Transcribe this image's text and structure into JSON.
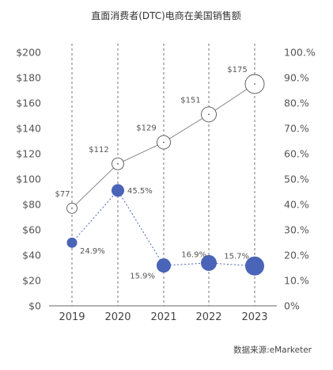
{
  "chart_data": {
    "type": "line",
    "title": "直面消费者(DTC)电商在美国销售额",
    "x": [
      "2019",
      "2020",
      "2021",
      "2022",
      "2023"
    ],
    "series": [
      {
        "axis": "left",
        "values": [
          77,
          112,
          129,
          151,
          175
        ],
        "labels": [
          "$77",
          "$112",
          "$129",
          "$151",
          "$175"
        ],
        "line_style": "solid",
        "marker": "hollow-circle",
        "color": "#888888"
      },
      {
        "axis": "right",
        "values": [
          24.9,
          45.5,
          15.9,
          16.9,
          15.7
        ],
        "labels": [
          "24.9%",
          "45.5%",
          "15.9%",
          "16.9%",
          "15.7%"
        ],
        "line_style": "dotted",
        "marker": "filled-circle",
        "color": "#4a64b8"
      }
    ],
    "y_left": {
      "range": [
        0,
        200
      ],
      "ticks": [
        "$0",
        "$20",
        "$40",
        "$60",
        "$80",
        "$100",
        "$120",
        "$140",
        "$160",
        "$180",
        "$200"
      ]
    },
    "y_right": {
      "range": [
        0,
        100
      ],
      "ticks": [
        "0%",
        "10.%",
        "20.%",
        "30.%",
        "40.%",
        "50.%",
        "60.%",
        "70.%",
        "80.%",
        "90.%",
        "100.%"
      ]
    },
    "grid": "vertical-dashed",
    "source": "数据来源:eMarketer"
  }
}
